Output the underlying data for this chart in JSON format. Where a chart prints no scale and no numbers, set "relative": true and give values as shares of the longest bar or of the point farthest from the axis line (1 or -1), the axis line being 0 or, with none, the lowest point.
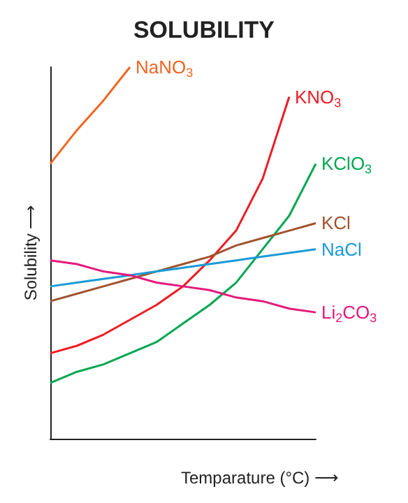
{
  "chart_data": {
    "type": "line",
    "title": "SOLUBILITY",
    "xlabel": "Temparature (°C) ⟶",
    "ylabel": "Solubility ⟶",
    "relative": true,
    "grid": false,
    "legend": false,
    "marker": "none",
    "line_style": "solid",
    "categories": [
      null,
      null,
      null,
      null,
      null,
      null,
      null,
      null,
      null,
      null,
      null
    ],
    "series": [
      {
        "name": "NaNO$_{3}$",
        "color": "#f26522",
        "values": [
          0.74,
          0.83,
          0.91,
          1,
          null,
          null,
          null,
          null,
          null,
          null,
          null
        ]
      },
      {
        "name": "KNO$_{3}$",
        "color": "#ed1c24",
        "values": [
          0.23,
          0.25,
          0.28,
          0.32,
          0.36,
          0.41,
          0.48,
          0.56,
          0.7,
          0.92,
          null
        ]
      },
      {
        "name": "KClO$_{3}$",
        "color": "#00a651",
        "values": [
          0.15,
          0.18,
          0.2,
          0.23,
          0.26,
          0.31,
          0.36,
          0.42,
          0.51,
          0.6,
          0.74
        ]
      },
      {
        "name": "KCl",
        "color": "#a0522d",
        "values": [
          0.37,
          0.39,
          0.41,
          0.43,
          0.45,
          0.47,
          0.49,
          0.52,
          0.54,
          0.56,
          0.58
        ]
      },
      {
        "name": "NaCl",
        "color": "#1b9ad6",
        "values": [
          0.41,
          0.42,
          0.43,
          0.44,
          0.45,
          0.46,
          0.47,
          0.48,
          0.49,
          0.5,
          0.51
        ]
      },
      {
        "name": "Li$_{2}$CO$_{3}$",
        "color": "#e5197a",
        "values": [
          0.48,
          0.47,
          0.45,
          0.44,
          0.42,
          0.41,
          0.4,
          0.38,
          0.37,
          0.35,
          0.34
        ]
      }
    ]
  }
}
